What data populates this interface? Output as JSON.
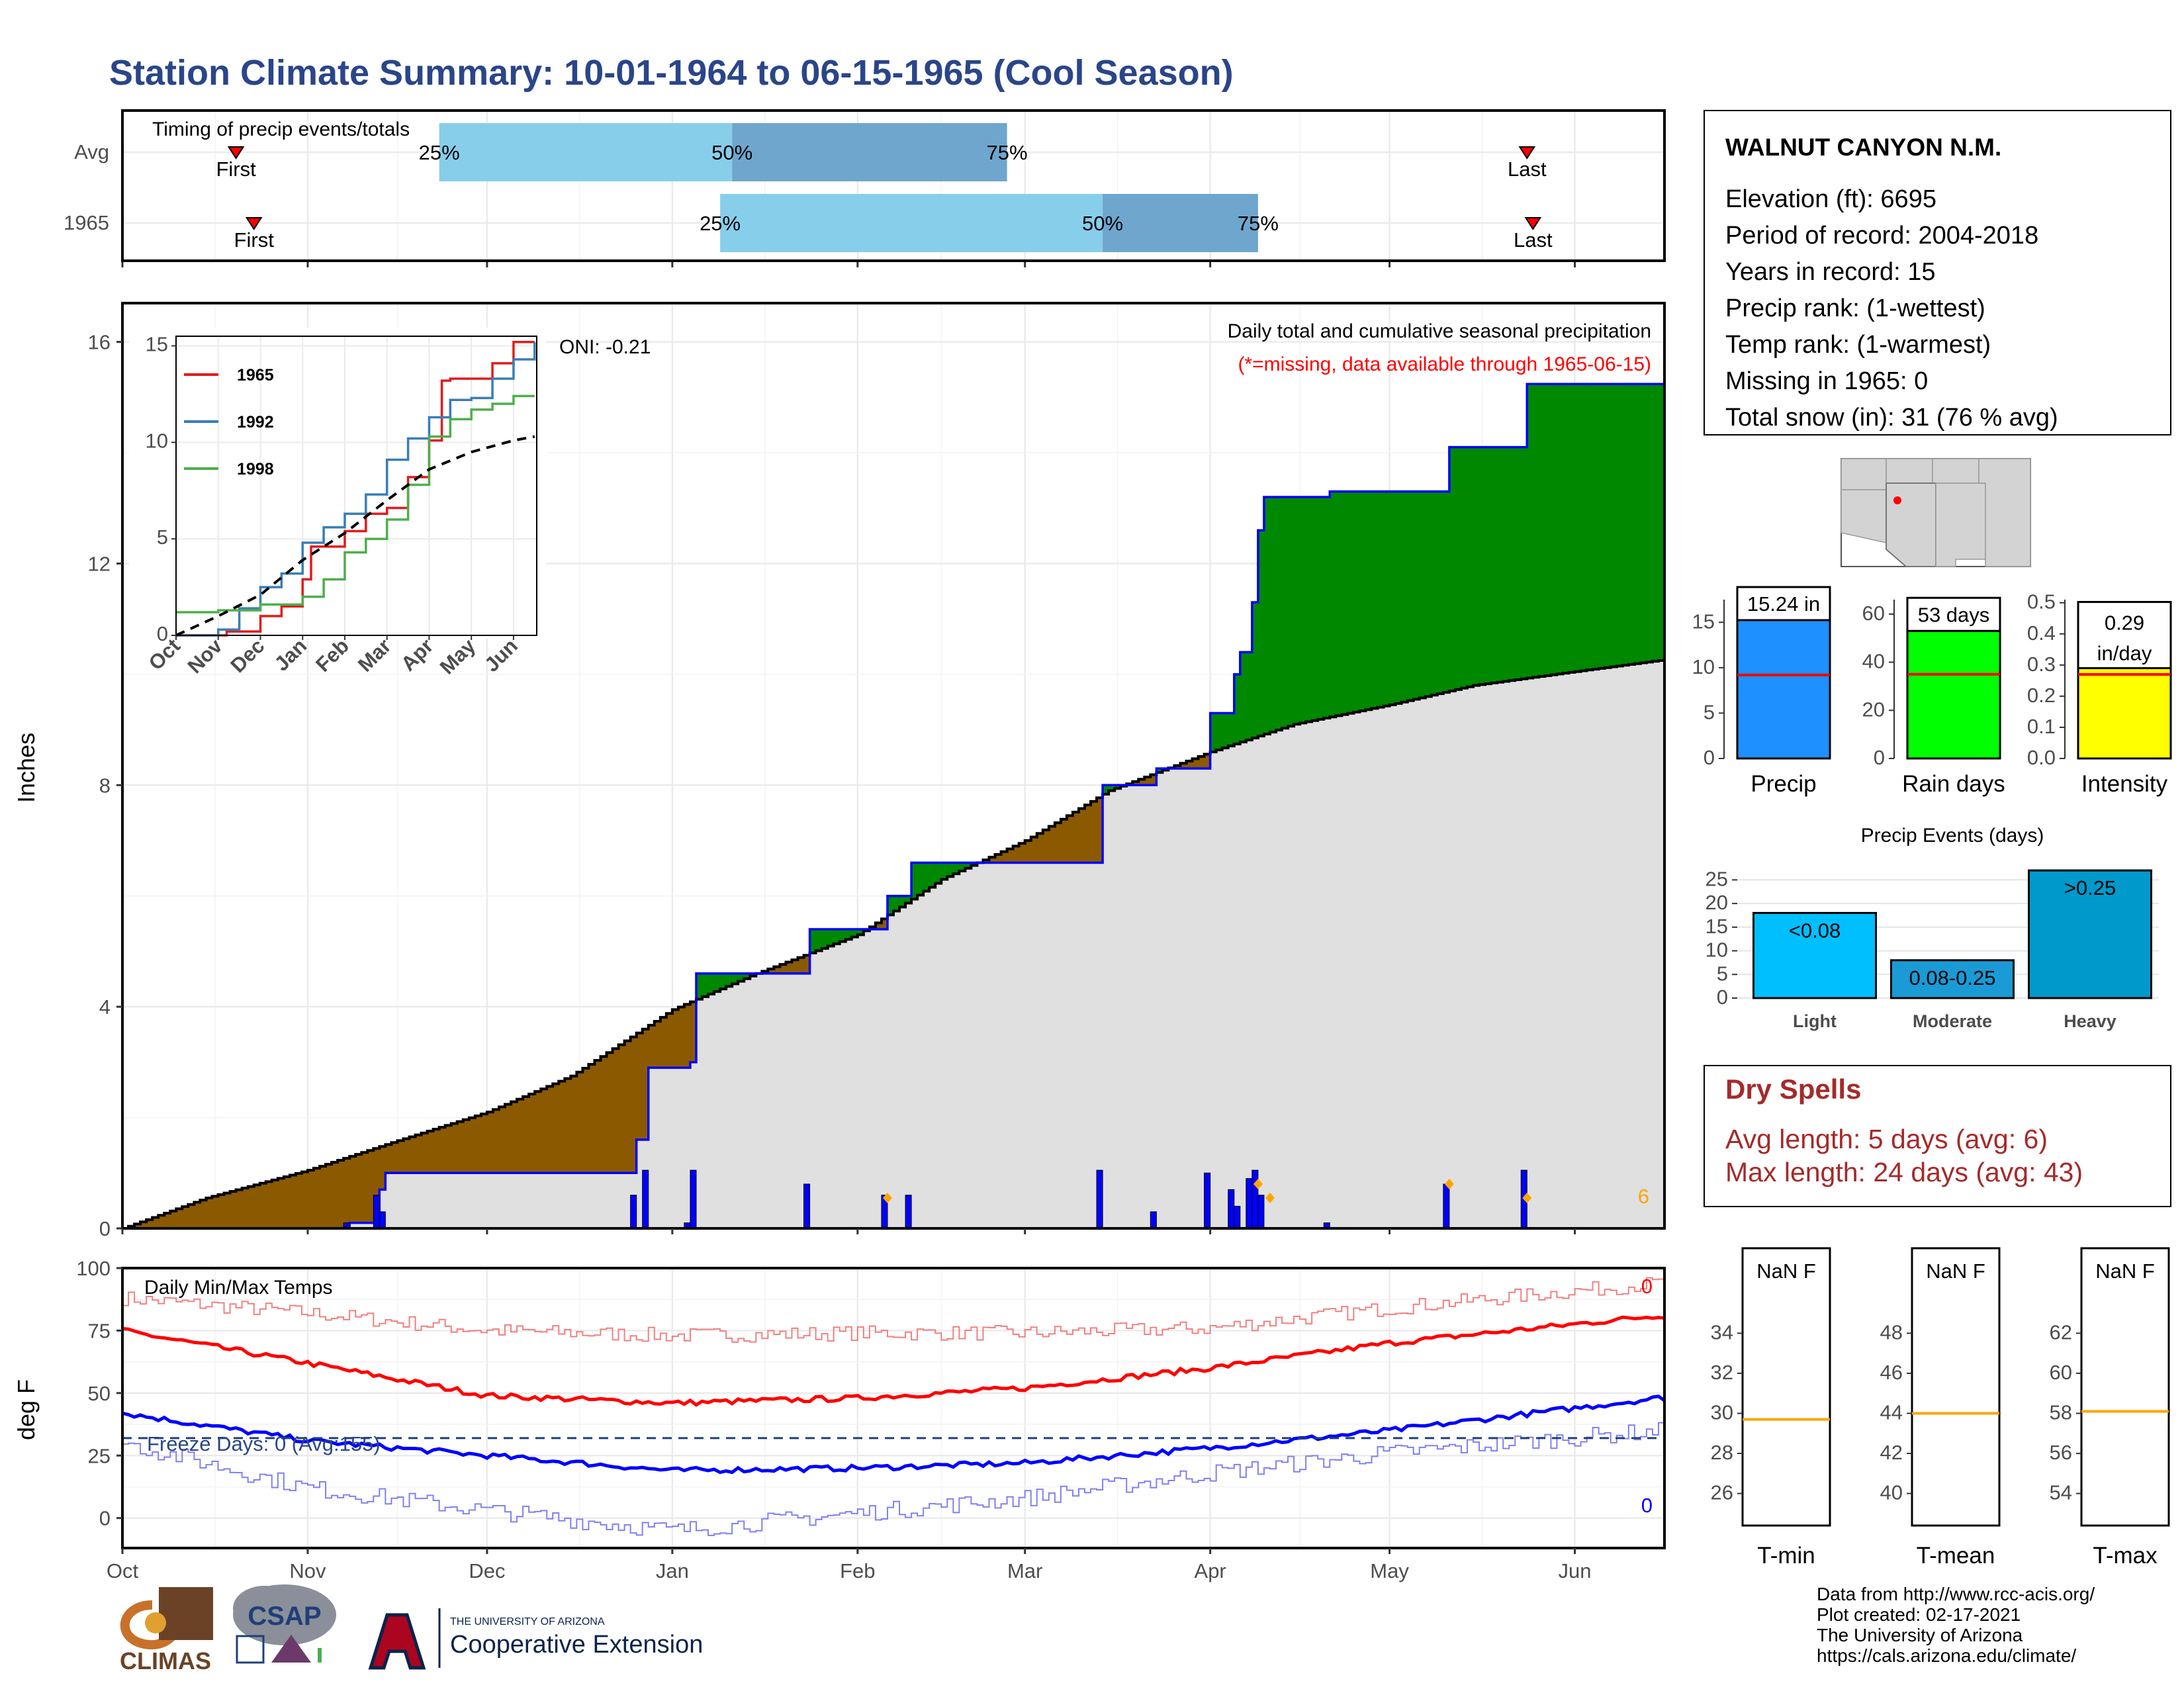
{
  "title": "Station Climate Summary: 10-01-1964 to 06-15-1965 (Cool Season)",
  "station": {
    "name": "WALNUT CANYON N.M.",
    "lines": [
      "Elevation (ft): 6695",
      "Period of record: 2004-2018",
      "Years in record: 15",
      "Precip rank:  (1-wettest)",
      "Temp rank:  (1-warmest)",
      "Missing in 1965: 0",
      "Total snow (in): 31 (76 % avg)"
    ]
  },
  "timing": {
    "label": "Timing of precip events/totals",
    "rows": [
      {
        "name": "Avg",
        "first_date": "1964-10-20",
        "p25": "1964-11-23",
        "p50": "1965-01-11",
        "p75": "1965-02-26",
        "last_date": "1965-05-24",
        "first_label": "First",
        "last_label": "Last"
      },
      {
        "name": "1965",
        "first_date": "1964-10-23",
        "p25": "1965-01-09",
        "p50": "1965-03-14",
        "p75": "1965-04-09",
        "last_date": "1965-05-25",
        "first_label": "First",
        "last_label": "Last"
      }
    ],
    "pct_labels": [
      "25%",
      "50%",
      "75%"
    ]
  },
  "colors": {
    "title": "#2a4589",
    "light_blue": "#87ceeb",
    "mid_blue": "#6ea6cd",
    "brown": "#8b5a00",
    "green": "#008800",
    "gray_fill": "#e0e0e0",
    "blue_line": "#0000ff",
    "red_line": "#ff0000",
    "orange": "#ffa500",
    "dry_red": "#a52a2a"
  },
  "precip_panel": {
    "title": "Daily total and cumulative seasonal precipitation",
    "subtitle": "(*=missing, data available through 1965-06-15)",
    "oni": "ONI: -0.21",
    "ylabel": "Inches",
    "y_ticks": [
      "0",
      "4",
      "8",
      "12",
      "16"
    ],
    "right_note": "6"
  },
  "inset": {
    "y_ticks": [
      "0",
      "5",
      "10",
      "15"
    ],
    "x_ticks": [
      "Oct",
      "Nov",
      "Dec",
      "Jan",
      "Feb",
      "Mar",
      "Apr",
      "May",
      "Jun"
    ],
    "legend": [
      "1965",
      "1992",
      "1998"
    ]
  },
  "temp_panel": {
    "title": "Daily Min/Max Temps",
    "ylabel": "deg F",
    "y_ticks": [
      "0",
      "25",
      "50",
      "75",
      "100"
    ],
    "freeze": "Freeze Days: 0 (Avg:155)",
    "max_count": "0",
    "min_count": "0"
  },
  "x_months": [
    "Oct",
    "Nov",
    "Dec",
    "Jan",
    "Feb",
    "Mar",
    "Apr",
    "May",
    "Jun"
  ],
  "bars": {
    "precip": {
      "label": "15.24 in",
      "name": "Precip",
      "value": 15.24,
      "avg": 9.2,
      "ticks": [
        "0",
        "5",
        "10",
        "15"
      ]
    },
    "rain_days": {
      "label": "53 days",
      "name": "Rain days",
      "value": 53,
      "avg": 35,
      "ticks": [
        "0",
        "20",
        "40",
        "60"
      ]
    },
    "intensity": {
      "label1": "0.29",
      "label2": "in/day",
      "name": "Intensity",
      "value": 0.29,
      "avg": 0.27,
      "ticks": [
        "0.0",
        "0.1",
        "0.2",
        "0.3",
        "0.4",
        "0.5"
      ]
    }
  },
  "events": {
    "title": "Precip Events (days)",
    "categories": [
      "Light",
      "Moderate",
      "Heavy"
    ],
    "labels": [
      "<0.08",
      "0.08-0.25",
      ">0.25"
    ],
    "values": [
      18,
      8,
      27
    ],
    "ticks": [
      "0",
      "5",
      "10",
      "15",
      "20",
      "25"
    ]
  },
  "dry": {
    "title": "Dry Spells",
    "avg": "Avg length: 5 days (avg: 6)",
    "max": "Max length: 24 days (avg: 43)"
  },
  "temp_boxes": [
    {
      "name": "T-min",
      "label": "NaN F",
      "ticks": [
        "26",
        "28",
        "30",
        "32",
        "34"
      ],
      "avg_tick": 29.7
    },
    {
      "name": "T-mean",
      "label": "NaN F",
      "ticks": [
        "40",
        "42",
        "44",
        "46",
        "48"
      ],
      "avg_tick": 44
    },
    {
      "name": "T-max",
      "label": "NaN F",
      "ticks": [
        "54",
        "56",
        "58",
        "60",
        "62"
      ],
      "avg_tick": 58.1
    }
  ],
  "credits": [
    "Data from http://www.rcc-acis.org/",
    "Plot created: 02-17-2021",
    "The University of Arizona",
    "https://cals.arizona.edu/climate/"
  ],
  "logos": {
    "climas": "CLIMAS",
    "csap": "CSAP",
    "ua_top": "THE UNIVERSITY OF ARIZONA",
    "ua_bottom": "Cooperative Extension"
  },
  "chart_data": [
    {
      "type": "area",
      "name": "cumulative seasonal precipitation",
      "x_unit": "date",
      "ylim": [
        0,
        16.7
      ],
      "observed_cumulative": {
        "x": [
          "1964-10-01",
          "1964-11-08",
          "1964-11-13",
          "1964-11-14",
          "1964-11-30",
          "1964-12-26",
          "1964-12-28",
          "1965-01-04",
          "1965-01-05",
          "1965-01-17",
          "1965-01-24",
          "1965-02-01",
          "1965-02-06",
          "1965-02-10",
          "1965-02-19",
          "1965-03-14",
          "1965-03-22",
          "1965-03-23",
          "1965-04-01",
          "1965-04-05",
          "1965-04-06",
          "1965-04-08",
          "1965-04-09",
          "1965-04-10",
          "1965-04-21",
          "1965-05-11",
          "1965-05-24",
          "1965-06-15"
        ],
        "y": [
          0,
          0.1,
          0.7,
          1.0,
          1.0,
          1.6,
          2.9,
          3.0,
          4.6,
          4.6,
          5.4,
          5.4,
          6.0,
          6.6,
          6.6,
          8.0,
          8.0,
          8.3,
          9.3,
          10.0,
          10.4,
          11.3,
          12.6,
          13.2,
          13.3,
          14.1,
          15.24,
          15.24
        ]
      },
      "average_cumulative": {
        "x": [
          "1964-10-01",
          "1964-10-15",
          "1964-11-01",
          "1964-11-15",
          "1964-12-01",
          "1964-12-15",
          "1965-01-01",
          "1965-01-15",
          "1965-02-01",
          "1965-02-15",
          "1965-03-01",
          "1965-03-15",
          "1965-04-01",
          "1965-04-15",
          "1965-05-01",
          "1965-05-15",
          "1965-06-01",
          "1965-06-15"
        ],
        "y": [
          0,
          0.55,
          1.05,
          1.55,
          2.1,
          2.75,
          3.95,
          4.6,
          5.3,
          6.3,
          7.0,
          7.9,
          8.6,
          9.1,
          9.45,
          9.8,
          10.05,
          10.25
        ]
      }
    },
    {
      "type": "line",
      "name": "inset cumulative precip comparison",
      "x_unit": "month",
      "ylim": [
        0,
        15.5
      ],
      "series": [
        {
          "name": "1965",
          "x": [
            0,
            1.2,
            2,
            2.5,
            3,
            3.2,
            4,
            4.5,
            5,
            5.5,
            6,
            6.3,
            6.5,
            7.5,
            8,
            8.3,
            8.5
          ],
          "y": [
            0,
            0.2,
            1,
            1.5,
            2.9,
            4.6,
            5.4,
            6.3,
            6.6,
            8.2,
            10.1,
            13.2,
            13.3,
            14.1,
            15.2,
            15.2,
            15.2
          ]
        },
        {
          "name": "1992",
          "x": [
            0,
            1,
            1.5,
            2,
            2.5,
            3,
            3.5,
            4,
            4.5,
            5,
            5.5,
            6,
            6.5,
            7,
            7.5,
            8,
            8.5
          ],
          "y": [
            0,
            0.3,
            1.4,
            2.5,
            3.2,
            4.8,
            5.6,
            6.3,
            7.3,
            9.1,
            10.2,
            11.3,
            12.2,
            12.3,
            13.3,
            14.3,
            15.2
          ]
        },
        {
          "name": "1998",
          "x": [
            0,
            1,
            2,
            3,
            3.5,
            4,
            4.5,
            5,
            5.5,
            6,
            6.5,
            7,
            7.5,
            8,
            8.5
          ],
          "y": [
            1.2,
            1.3,
            1.6,
            2.0,
            2.9,
            4.3,
            5.0,
            6.0,
            7.8,
            10.3,
            11.2,
            11.7,
            12.0,
            12.4,
            12.4
          ]
        },
        {
          "name": "average",
          "x": [
            0,
            1,
            2,
            3,
            4,
            5,
            6,
            7,
            8,
            8.5
          ],
          "y": [
            0,
            1.0,
            2.1,
            3.9,
            5.3,
            7.0,
            8.6,
            9.5,
            10.1,
            10.3
          ]
        }
      ]
    },
    {
      "type": "line",
      "name": "daily min max temps",
      "ylim": [
        -12,
        100
      ],
      "series": [
        {
          "name": "record max",
          "x": [
            "1964-10-01",
            "1964-11-01",
            "1964-12-01",
            "1965-01-01",
            "1965-02-01",
            "1965-03-01",
            "1965-04-01",
            "1965-05-01",
            "1965-06-15"
          ],
          "y": [
            88,
            82,
            75,
            73,
            74,
            74,
            76,
            84,
            94
          ]
        },
        {
          "name": "avg max",
          "x": [
            "1964-10-01",
            "1964-11-01",
            "1964-12-01",
            "1965-01-01",
            "1965-02-01",
            "1965-03-01",
            "1965-04-01",
            "1965-05-01",
            "1965-06-15"
          ],
          "y": [
            75,
            62,
            49,
            46,
            48,
            52,
            60,
            70,
            81
          ]
        },
        {
          "name": "avg min",
          "x": [
            "1964-10-01",
            "1964-11-01",
            "1964-12-01",
            "1965-01-01",
            "1965-02-01",
            "1965-03-01",
            "1965-04-01",
            "1965-05-01",
            "1965-06-15"
          ],
          "y": [
            42,
            31,
            25,
            19,
            20,
            22,
            28,
            35,
            48
          ]
        },
        {
          "name": "record min",
          "x": [
            "1964-10-01",
            "1964-11-01",
            "1964-12-01",
            "1965-01-01",
            "1965-02-01",
            "1965-03-01",
            "1965-04-01",
            "1965-05-01",
            "1965-06-15"
          ],
          "y": [
            30,
            12,
            3,
            -5,
            2,
            8,
            18,
            26,
            35
          ]
        }
      ],
      "freeze_line": 32
    },
    {
      "type": "bar",
      "name": "Precip Events (days)",
      "categories": [
        "Light",
        "Moderate",
        "Heavy"
      ],
      "values": [
        18,
        8,
        27
      ]
    }
  ]
}
